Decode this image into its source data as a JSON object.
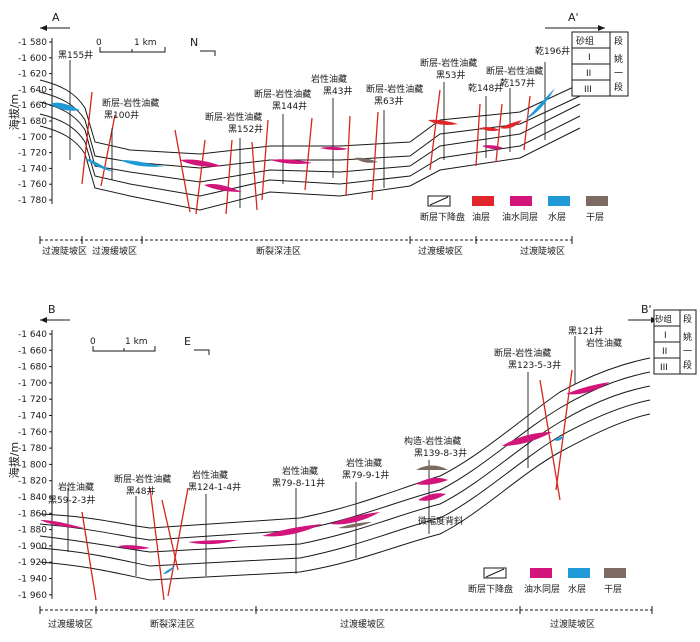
{
  "section_a": {
    "left_marker": "A",
    "right_marker": "A'",
    "axis_title": "海拔/m",
    "ticks": [
      "-1 580",
      "-1 600",
      "-1 620",
      "-1 640",
      "-1 660",
      "-1 680",
      "-1 700",
      "-1 720",
      "-1 740",
      "-1 760",
      "-1 780"
    ],
    "scale_zero": "0",
    "scale_unit": "1 km",
    "north": "N",
    "wells": [
      {
        "name": "黑155井"
      },
      {
        "type": "断层-岩性油藏",
        "name": "黑100井"
      },
      {
        "type": "断层-岩性油藏",
        "name": "黑152井"
      },
      {
        "type": "断层-岩性油藏",
        "name": "黑144井"
      },
      {
        "type": "岩性油藏",
        "name": "黑43井"
      },
      {
        "type": "断层-岩性油藏",
        "name": "黑63井"
      },
      {
        "type": "断层-岩性油藏",
        "name": "黑53井"
      },
      {
        "name": "乾148井"
      },
      {
        "type": "断层-岩性油藏",
        "name": "乾157井"
      },
      {
        "name": "乾196井"
      }
    ],
    "strat_table": {
      "head_left": "砂组",
      "head_right": "段",
      "rows": [
        "I",
        "II",
        "III"
      ],
      "stage_1": "姚",
      "stage_2": "一",
      "stage_3": "段"
    },
    "legend": [
      "断层下降盘",
      "油层",
      "油水同层",
      "水层",
      "干层"
    ],
    "zones": [
      "过渡陡坡区",
      "过渡缓坡区",
      "断裂深洼区",
      "过渡缓坡区",
      "过渡陡坡区"
    ]
  },
  "section_b": {
    "left_marker": "B",
    "right_marker": "B'",
    "axis_title": "海拔/m",
    "ticks": [
      "-1 640",
      "-1 660",
      "-1 680",
      "-1 700",
      "-1 720",
      "-1 740",
      "-1 760",
      "-1 780",
      "-1 800",
      "-1 820",
      "-1 840",
      "-1 860",
      "-1 880",
      "-1 900",
      "-1 920",
      "-1 940",
      "-1 960"
    ],
    "scale_zero": "0",
    "scale_unit": "1 km",
    "east": "E",
    "wells": [
      {
        "type": "岩性油藏",
        "name": "黑59-2-3井"
      },
      {
        "type": "断层-岩性油藏",
        "name": "黑48井"
      },
      {
        "type": "岩性油藏",
        "name": "黑124-1-4井"
      },
      {
        "type": "岩性油藏",
        "name": "黑79-8-11井"
      },
      {
        "type": "岩性油藏",
        "name": "黑79-9-1井"
      },
      {
        "type": "构造-岩性油藏",
        "name": "黑139-8-3井"
      },
      {
        "type": "断层-岩性油藏",
        "name": "黑123-5-3井"
      },
      {
        "name": "黑121井"
      },
      {
        "type": "岩性油藏"
      }
    ],
    "anticline": "微幅度背斜",
    "strat_table": {
      "head_left": "砂组",
      "head_right": "段",
      "rows": [
        "I",
        "II",
        "III"
      ],
      "stage_1": "姚",
      "stage_2": "一",
      "stage_3": "段"
    },
    "legend": [
      "断层下降盘",
      "油水同层",
      "水层",
      "干层"
    ],
    "zones": [
      "过渡缓坡区",
      "断裂深洼区",
      "过渡缓坡区",
      "过渡陡坡区"
    ]
  },
  "colors": {
    "oil": "#e0262b",
    "oil_water": "#d1157a",
    "water": "#1f9ad6",
    "dry": "#7d6a62",
    "fault": "#d9261c"
  }
}
